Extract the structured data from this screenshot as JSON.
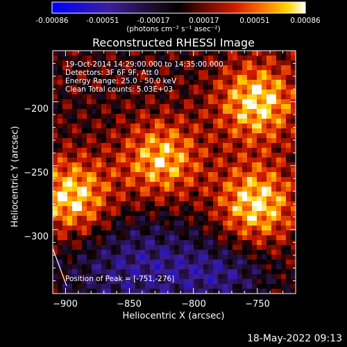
{
  "colorbar": {
    "ticks": [
      "-0.00086",
      "-0.00051",
      "-0.00017",
      "0.00017",
      "0.00051",
      "0.00086"
    ],
    "unit": "(photons cm⁻² s⁻¹ asec⁻²)",
    "min": -0.00086,
    "max": 0.00086
  },
  "chart_data": {
    "type": "heatmap",
    "title": "Reconstructed RHESSI Image",
    "xlabel": "Heliocentric X (arcsec)",
    "ylabel": "Heliocentric Y (arcsec)",
    "xlim": [
      -910,
      -720
    ],
    "ylim": [
      -350,
      -160
    ],
    "xticks": [
      -900,
      -850,
      -800,
      -750
    ],
    "yticks": [
      -200,
      -250,
      -300
    ],
    "x_tick_labels": [
      "−900",
      "−850",
      "−800",
      "−750"
    ],
    "y_tick_labels": [
      "−200",
      "−250",
      "−300"
    ],
    "colormap": "hot-bipolar (blue-purple negative, black zero, red-orange-yellow-white positive)",
    "annotations": [
      "19-Oct-2014 14:29:00.000 to 14:35:00.000",
      "Detectors: 3F 6F 9F, Att 0",
      "Energy Range: 25.0 - 50.0 keV",
      "Clean     Total counts: 5.03E+03"
    ],
    "peak_label": "Position of Peak = [-751,-276]",
    "peak": [
      -751,
      -276
    ],
    "bright_regions": [
      {
        "x": -825,
        "y": -245
      },
      {
        "x": -751,
        "y": -280
      },
      {
        "x": -750,
        "y": -200
      },
      {
        "x": -895,
        "y": -275
      }
    ]
  },
  "footer_timestamp": "18-May-2022 09:13"
}
